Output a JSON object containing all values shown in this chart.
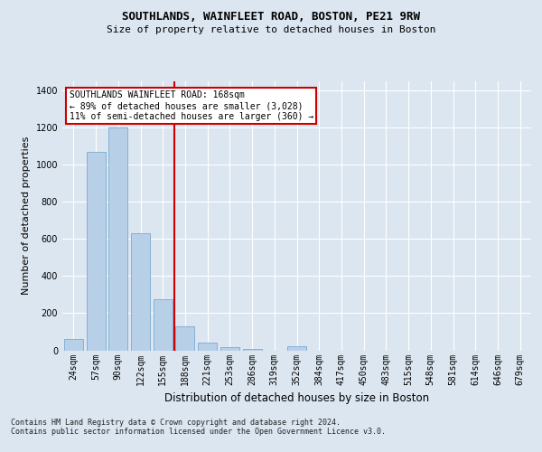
{
  "title1": "SOUTHLANDS, WAINFLEET ROAD, BOSTON, PE21 9RW",
  "title2": "Size of property relative to detached houses in Boston",
  "xlabel": "Distribution of detached houses by size in Boston",
  "ylabel": "Number of detached properties",
  "categories": [
    "24sqm",
    "57sqm",
    "90sqm",
    "122sqm",
    "155sqm",
    "188sqm",
    "221sqm",
    "253sqm",
    "286sqm",
    "319sqm",
    "352sqm",
    "384sqm",
    "417sqm",
    "450sqm",
    "483sqm",
    "515sqm",
    "548sqm",
    "581sqm",
    "614sqm",
    "646sqm",
    "679sqm"
  ],
  "values": [
    60,
    1070,
    1200,
    630,
    275,
    130,
    40,
    18,
    5,
    0,
    20,
    0,
    0,
    0,
    0,
    0,
    0,
    0,
    0,
    0,
    0
  ],
  "bar_color": "#b8cfe8",
  "bar_edgecolor": "#7aaad0",
  "marker_color": "#cc0000",
  "annotation_text": "SOUTHLANDS WAINFLEET ROAD: 168sqm\n← 89% of detached houses are smaller (3,028)\n11% of semi-detached houses are larger (360) →",
  "annotation_box_color": "#ffffff",
  "annotation_box_edgecolor": "#cc0000",
  "ylim": [
    0,
    1450
  ],
  "yticks": [
    0,
    200,
    400,
    600,
    800,
    1000,
    1200,
    1400
  ],
  "footer": "Contains HM Land Registry data © Crown copyright and database right 2024.\nContains public sector information licensed under the Open Government Licence v3.0.",
  "bg_color": "#dce6f0",
  "plot_bg_color": "#dce6f0",
  "grid_color": "#ffffff",
  "title1_fontsize": 9,
  "title2_fontsize": 8,
  "ylabel_fontsize": 8,
  "xlabel_fontsize": 8.5,
  "tick_fontsize": 7,
  "footer_fontsize": 6,
  "annotation_fontsize": 7
}
